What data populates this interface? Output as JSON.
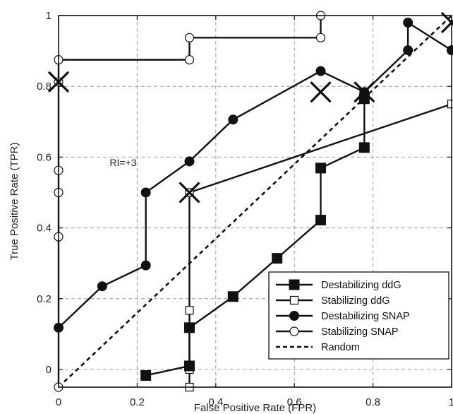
{
  "chart_data": {
    "type": "line",
    "xlabel": "False Positive Rate (FPR)",
    "ylabel": "True Positive Rate (TPR)",
    "xlim": [
      0,
      1
    ],
    "ylim": [
      -0.05,
      1
    ],
    "x_ticks": [
      0,
      0.2,
      0.4,
      0.6,
      0.8,
      1
    ],
    "x_tick_labels": [
      "0",
      "0.2",
      "0.4",
      "0.6",
      "0.8",
      "1"
    ],
    "y_ticks": [
      0,
      0.2,
      0.4,
      0.6,
      0.8,
      1
    ],
    "y_tick_labels": [
      "0",
      "0.2",
      "0.4",
      "0.6",
      "0.8",
      "1"
    ],
    "grid": true,
    "legend_position": "bottom-right",
    "series": [
      {
        "name": "Destabilizing ddG",
        "marker": "filled-square",
        "dash": "solid",
        "x": [
          0.222,
          0.333,
          0.333,
          0.444,
          0.556,
          0.667,
          0.667,
          0.778,
          0.778
        ],
        "y": [
          -0.017,
          0.01,
          0.118,
          0.206,
          0.314,
          0.422,
          0.569,
          0.627,
          0.765
        ]
      },
      {
        "name": "Stabilizing ddG",
        "marker": "open-square",
        "dash": "solid",
        "x": [
          0.333,
          0.333,
          0.333,
          0.333,
          1.0
        ],
        "y": [
          -0.05,
          0.0,
          0.167,
          0.5,
          0.75
        ]
      },
      {
        "name": "Destabilizing SNAP",
        "marker": "filled-circle",
        "dash": "solid",
        "x": [
          0,
          0.111,
          0.222,
          0.222,
          0.333,
          0.444,
          0.667,
          0.778,
          0.889,
          0.889,
          1.0
        ],
        "y": [
          0.118,
          0.235,
          0.294,
          0.5,
          0.588,
          0.706,
          0.843,
          0.784,
          0.902,
          0.98,
          0.902
        ]
      },
      {
        "name": "Stabilizing SNAP",
        "marker": "open-circle",
        "dash": "solid",
        "x": [
          0,
          0,
          0,
          0,
          0,
          0,
          0.333,
          0.333,
          0.667,
          0.667
        ],
        "y": [
          -0.05,
          0.375,
          0.5,
          0.5625,
          0.8125,
          0.875,
          0.875,
          0.9375,
          0.9375,
          1.0
        ]
      },
      {
        "name": "Random",
        "marker": "none",
        "dash": "dashed",
        "x": [
          0,
          1
        ],
        "y": [
          -0.05,
          1
        ]
      }
    ],
    "cross_markers": [
      {
        "x": 0,
        "y": 0.8125
      },
      {
        "x": 0.333,
        "y": 0.5
      },
      {
        "x": 0.667,
        "y": 0.784
      },
      {
        "x": 0.778,
        "y": 0.784
      },
      {
        "x": 1.0,
        "y": 0.98
      }
    ],
    "annotations": [
      {
        "text": "RI=+3",
        "x": 0.13,
        "y": 0.575
      }
    ]
  }
}
